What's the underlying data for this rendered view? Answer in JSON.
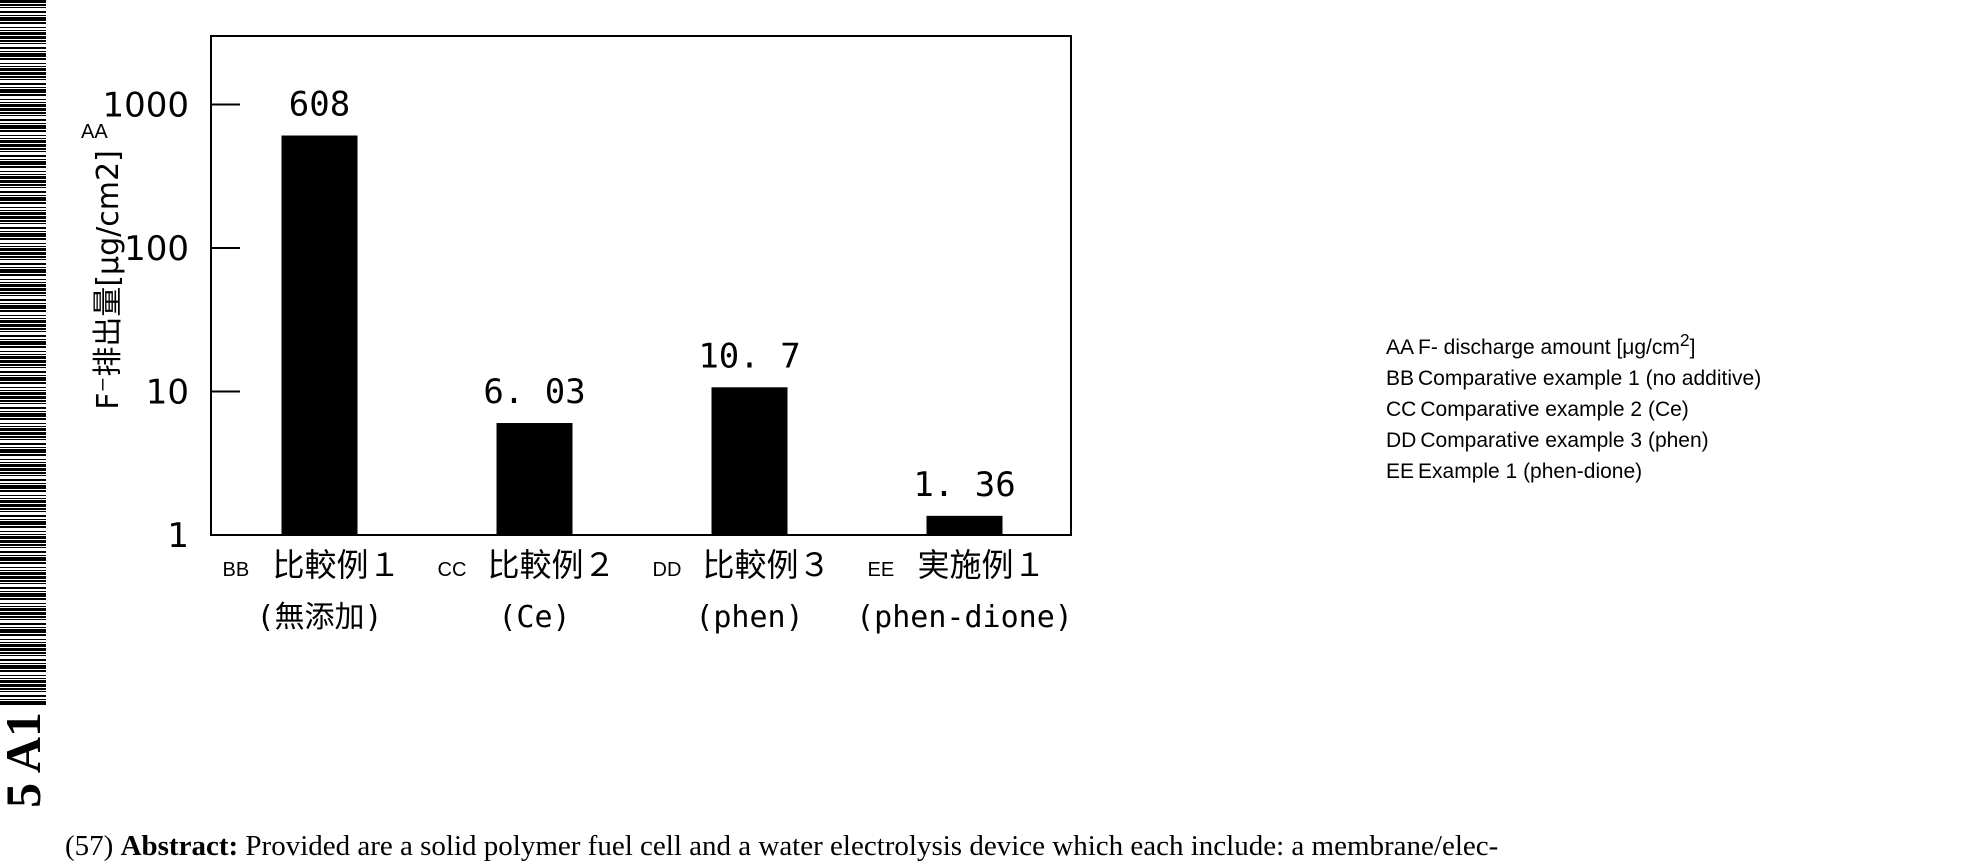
{
  "side_label": "5 A1",
  "chart_data": {
    "type": "bar",
    "yscale": "log",
    "ylim": [
      1,
      3000
    ],
    "ylabel_code": "AA",
    "ylabel": "F⁻排出量[μg/cm2]",
    "yticks": [
      {
        "value": 1,
        "label": "1"
      },
      {
        "value": 10,
        "label": "10"
      },
      {
        "value": 100,
        "label": "100"
      },
      {
        "value": 1000,
        "label": "1000"
      }
    ],
    "categories": [
      {
        "code": "BB",
        "name": "比較例１",
        "sub": "(無添加)"
      },
      {
        "code": "CC",
        "name": "比較例２",
        "sub": "(Ce)"
      },
      {
        "code": "DD",
        "name": "比較例３",
        "sub": "(phen)"
      },
      {
        "code": "EE",
        "name": "実施例１",
        "sub": "(phen-dione)"
      }
    ],
    "values": [
      608,
      6.03,
      10.7,
      1.36
    ],
    "data_labels": [
      "608",
      "6. 03",
      "10. 7",
      "1. 36"
    ],
    "bar_color": "#000000",
    "grid": false
  },
  "legend": {
    "items": [
      {
        "code": "AA",
        "text": "F- discharge amount [μg/cm",
        "sup": "2",
        "tail": "]"
      },
      {
        "code": "BB",
        "text": "Comparative example 1 (no additive)",
        "sup": "",
        "tail": ""
      },
      {
        "code": "CC",
        "text": "Comparative example 2 (Ce)",
        "sup": "",
        "tail": ""
      },
      {
        "code": "DD",
        "text": "Comparative example 3 (phen)",
        "sup": "",
        "tail": ""
      },
      {
        "code": "EE",
        "text": "Example 1 (phen-dione)",
        "sup": "",
        "tail": ""
      }
    ]
  },
  "abstract": {
    "number": "(57)",
    "label": "Abstract:",
    "text": "Provided are a solid polymer fuel cell and a water electrolysis device which each include: a membrane/elec-"
  }
}
